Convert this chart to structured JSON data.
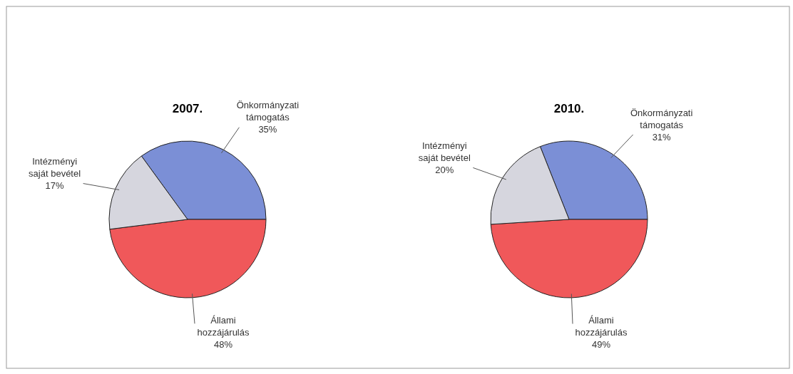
{
  "chart_data": [
    {
      "type": "pie",
      "title": "2007.",
      "categories": [
        "Önkormányzati támogatás",
        "Állami hozzájárulás",
        "Intézményi saját bevétel"
      ],
      "values": [
        35,
        48,
        17
      ],
      "colors": [
        "#7b8fd6",
        "#f0585a",
        "#d6d6de"
      ],
      "value_labels": [
        "35%",
        "48%",
        "17%"
      ]
    },
    {
      "type": "pie",
      "title": "2010.",
      "categories": [
        "Önkormányzati támogatás",
        "Állami hozzájárulás",
        "Intézményi saját bevétel"
      ],
      "values": [
        31,
        49,
        20
      ],
      "colors": [
        "#7b8fd6",
        "#f0585a",
        "#d6d6de"
      ],
      "value_labels": [
        "31%",
        "49%",
        "20%"
      ]
    }
  ]
}
